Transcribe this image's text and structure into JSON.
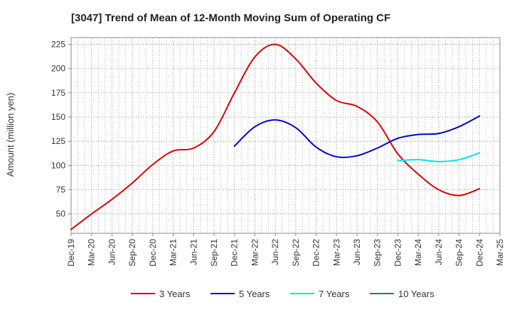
{
  "chart_data": {
    "type": "line",
    "title": "[3047]  Trend of Mean of 12-Month Moving Sum of Operating CF",
    "xlabel": "",
    "ylabel": "Amount (million yen)",
    "ylim": [
      30,
      232
    ],
    "yticks": [
      50,
      75,
      100,
      125,
      150,
      175,
      200,
      225
    ],
    "grid": true,
    "legend_position": "bottom",
    "x": [
      "Dec-19",
      "Mar-20",
      "Jun-20",
      "Sep-20",
      "Dec-20",
      "Mar-21",
      "Jun-21",
      "Sep-21",
      "Dec-21",
      "Mar-22",
      "Jun-22",
      "Sep-22",
      "Dec-22",
      "Mar-23",
      "Jun-23",
      "Sep-23",
      "Dec-23",
      "Mar-24",
      "Jun-24",
      "Sep-24",
      "Dec-24",
      "Mar-25"
    ],
    "series": [
      {
        "name": "3 Years",
        "color": "#dd0000",
        "values": [
          34,
          50,
          65,
          82,
          101,
          115,
          118,
          135,
          175,
          212,
          225,
          210,
          185,
          167,
          161,
          145,
          112,
          91,
          75,
          69,
          76,
          null
        ]
      },
      {
        "name": "5 Years",
        "color": "#0000cc",
        "values": [
          null,
          null,
          null,
          null,
          null,
          null,
          null,
          null,
          120,
          140,
          147,
          139,
          119,
          109,
          110,
          118,
          128,
          132,
          133,
          140,
          151,
          null
        ]
      },
      {
        "name": "7 Years",
        "color": "#00e5ee",
        "values": [
          null,
          null,
          null,
          null,
          null,
          null,
          null,
          null,
          null,
          null,
          null,
          null,
          null,
          null,
          null,
          null,
          105,
          106,
          104,
          106,
          113,
          null
        ]
      },
      {
        "name": "10 Years",
        "color": "#228b22",
        "values": [
          null,
          null,
          null,
          null,
          null,
          null,
          null,
          null,
          null,
          null,
          null,
          null,
          null,
          null,
          null,
          null,
          null,
          null,
          null,
          null,
          null,
          null
        ]
      }
    ]
  }
}
